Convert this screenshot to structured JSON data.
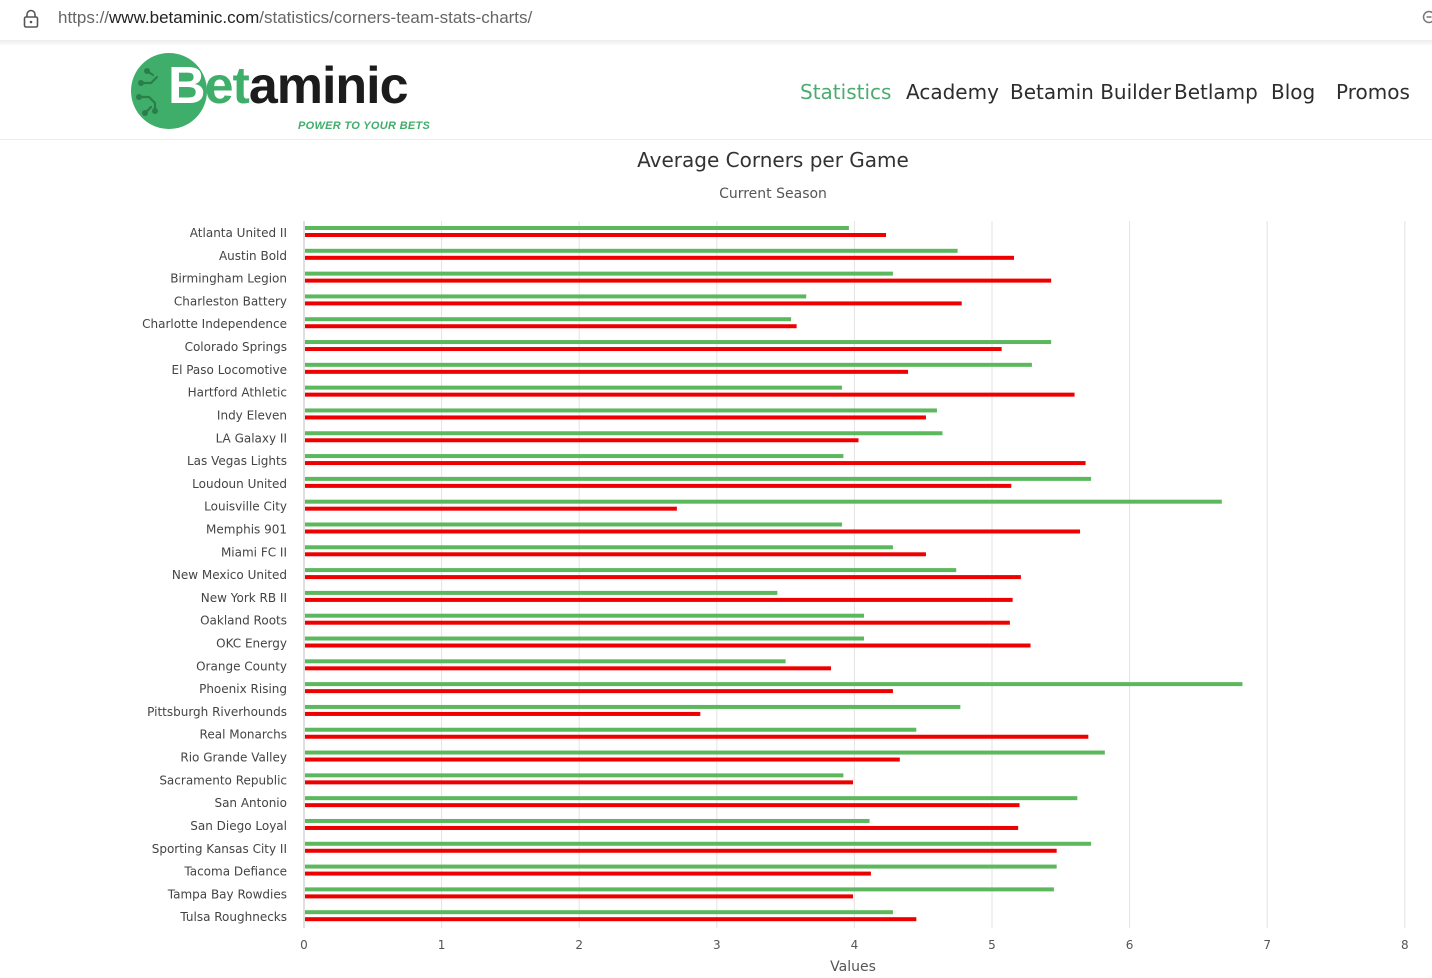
{
  "browser": {
    "url_scheme": "https://",
    "url_domain": "www.betaminic.com",
    "url_path": "/statistics/corners-team-stats-charts/"
  },
  "logo": {
    "wordmark_b": "B",
    "wordmark_et": "et",
    "wordmark_rest": "aminic",
    "tagline": "POWER TO YOUR BETS"
  },
  "nav": {
    "items": [
      {
        "label": "Statistics",
        "active": true
      },
      {
        "label": "Academy",
        "active": false
      },
      {
        "label": "Betamin Builder",
        "active": false
      },
      {
        "label": "Betlamp",
        "active": false
      },
      {
        "label": "Blog",
        "active": false
      },
      {
        "label": "Promos",
        "active": false
      }
    ]
  },
  "colors": {
    "brand_green": "#3fae6a",
    "series_green": "#5cb85c",
    "series_red": "#ee0000"
  },
  "chart_data": {
    "type": "bar",
    "orientation": "horizontal",
    "title": "Average Corners per Game",
    "subtitle": "Current Season",
    "xlabel": "Values",
    "ylabel": "",
    "xlim": [
      0,
      8
    ],
    "x_ticks": [
      "0",
      "1",
      "2",
      "3",
      "4",
      "5",
      "6",
      "7",
      "8"
    ],
    "grid": true,
    "legend": "none",
    "categories": [
      "Atlanta United II",
      "Austin Bold",
      "Birmingham Legion",
      "Charleston Battery",
      "Charlotte Independence",
      "Colorado Springs",
      "El Paso Locomotive",
      "Hartford Athletic",
      "Indy Eleven",
      "LA Galaxy II",
      "Las Vegas Lights",
      "Loudoun United",
      "Louisville City",
      "Memphis 901",
      "Miami FC II",
      "New Mexico United",
      "New York RB II",
      "Oakland Roots",
      "OKC Energy",
      "Orange County",
      "Phoenix Rising",
      "Pittsburgh Riverhounds",
      "Real Monarchs",
      "Rio Grande Valley",
      "Sacramento Republic",
      "San Antonio",
      "San Diego Loyal",
      "Sporting Kansas City II",
      "Tacoma Defiance",
      "Tampa Bay Rowdies",
      "Tulsa Roughnecks"
    ],
    "series": [
      {
        "color": "#5cb85c",
        "values": [
          3.96,
          4.75,
          4.28,
          3.65,
          3.54,
          5.43,
          5.29,
          3.91,
          4.6,
          4.64,
          3.92,
          5.72,
          6.67,
          3.91,
          4.28,
          4.74,
          3.44,
          4.07,
          4.07,
          3.5,
          6.82,
          4.77,
          4.45,
          5.82,
          3.92,
          5.62,
          4.11,
          5.72,
          5.47,
          5.45,
          4.28
        ]
      },
      {
        "color": "#ee0000",
        "values": [
          4.23,
          5.16,
          5.43,
          4.78,
          3.58,
          5.07,
          4.39,
          5.6,
          4.52,
          4.03,
          5.68,
          5.14,
          2.71,
          5.64,
          4.52,
          5.21,
          5.15,
          5.13,
          5.28,
          3.83,
          4.28,
          2.88,
          5.7,
          4.33,
          3.99,
          5.2,
          5.19,
          5.47,
          4.12,
          3.99,
          4.45
        ]
      }
    ]
  }
}
